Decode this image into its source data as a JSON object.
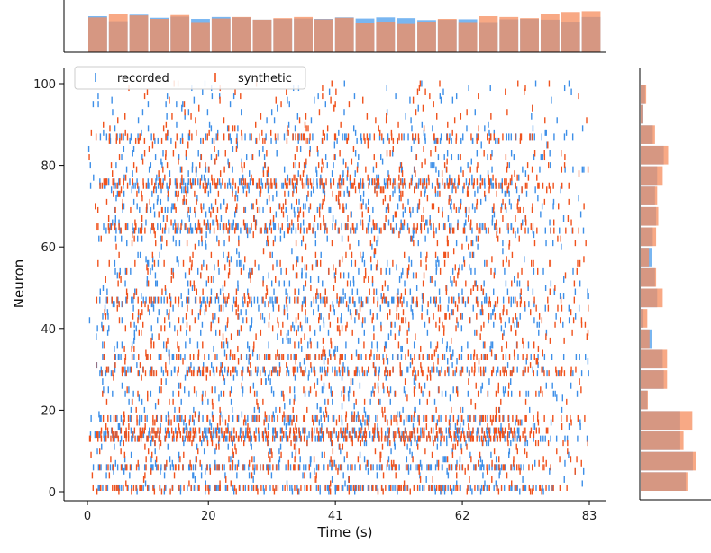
{
  "chart_data": {
    "type": "raster",
    "title": "",
    "xlabel": "Time (s)",
    "ylabel": "Neuron",
    "xlim": [
      -3,
      85
    ],
    "ylim": [
      -1,
      104
    ],
    "xticks": [
      0,
      20,
      41,
      62,
      83
    ],
    "yticks": [
      0,
      20,
      40,
      60,
      80,
      100
    ],
    "legend": {
      "placement": "top-left",
      "entries": [
        "recorded",
        "synthetic"
      ]
    },
    "colors": {
      "recorded": "#3d8fe8",
      "synthetic": "#f0521c",
      "overlap_hist": "#c9705a",
      "hist_recorded": "#6aaef0",
      "hist_synthetic": "#f58c5c"
    },
    "series": [
      {
        "name": "recorded",
        "color": "#3d8fe8"
      },
      {
        "name": "synthetic",
        "color": "#f0521c"
      }
    ],
    "time_histogram": {
      "bin_starts": [
        0,
        3.4,
        6.8,
        10.2,
        13.6,
        17,
        20.4,
        23.8,
        27.2,
        30.6,
        34,
        37.4,
        40.8,
        44.2,
        47.6,
        51,
        54.4,
        57.8,
        61.2,
        64.6,
        68,
        71.4,
        74.8,
        78.2,
        81.6
      ],
      "bin_width": 3.4,
      "recorded": [
        0.93,
        0.8,
        0.97,
        0.89,
        0.92,
        0.86,
        0.91,
        0.9,
        0.84,
        0.86,
        0.87,
        0.86,
        0.9,
        0.87,
        0.9,
        0.88,
        0.83,
        0.84,
        0.85,
        0.78,
        0.85,
        0.86,
        0.84,
        0.79,
        0.91
      ],
      "synthetic": [
        0.9,
        1.0,
        0.95,
        0.86,
        0.96,
        0.78,
        0.87,
        0.91,
        0.84,
        0.88,
        0.91,
        0.85,
        0.89,
        0.76,
        0.79,
        0.73,
        0.79,
        0.86,
        0.78,
        0.93,
        0.91,
        0.88,
        0.99,
        1.04,
        1.06
      ]
    },
    "neuron_histogram": {
      "bin_starts": [
        0,
        5,
        10,
        15,
        20,
        25,
        30,
        35,
        40,
        45,
        50,
        55,
        60,
        65,
        70,
        75,
        80,
        85,
        90,
        95,
        100
      ],
      "bin_width": 5,
      "recorded": [
        0.82,
        0.95,
        0.72,
        0.72,
        0.12,
        0.42,
        0.4,
        0.2,
        0.05,
        0.3,
        0.26,
        0.2,
        0.22,
        0.28,
        0.26,
        0.3,
        0.42,
        0.22,
        0.04,
        0.08,
        0.0
      ],
      "synthetic": [
        0.85,
        1.0,
        0.78,
        0.94,
        0.13,
        0.48,
        0.48,
        0.16,
        0.12,
        0.4,
        0.28,
        0.15,
        0.28,
        0.32,
        0.3,
        0.4,
        0.5,
        0.26,
        0.03,
        0.1,
        0.0
      ]
    }
  }
}
